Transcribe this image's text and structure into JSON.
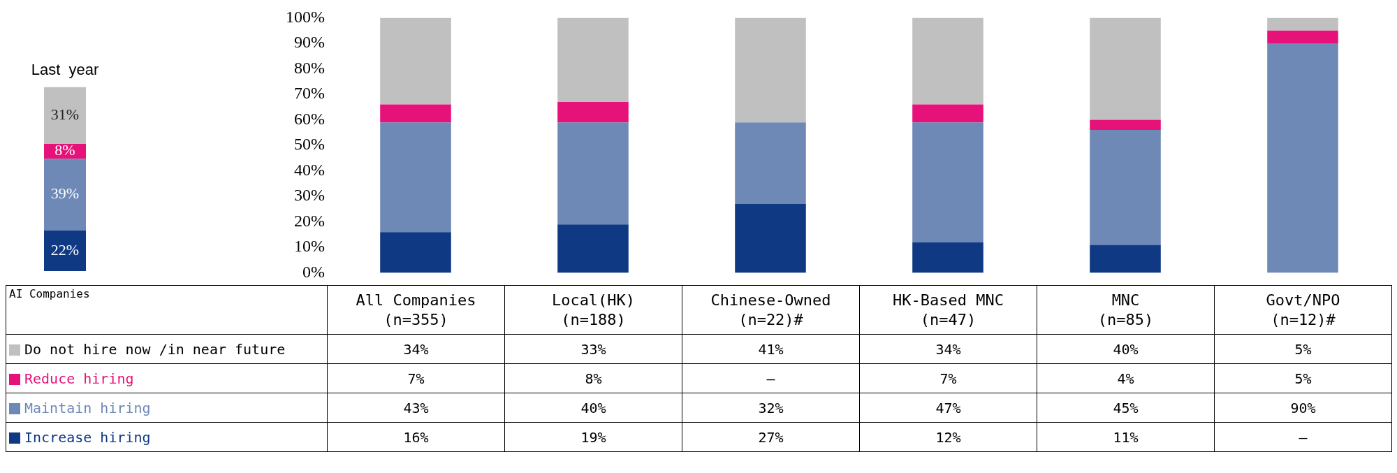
{
  "chart_data": [
    {
      "type": "bar",
      "title": "Last  year",
      "categories": [
        null
      ],
      "stacked": true,
      "series": [
        {
          "color": "#0f3a83",
          "values": [
            22
          ],
          "value_labels": [
            "22%"
          ]
        },
        {
          "color": "#6f89b7",
          "values": [
            39
          ],
          "value_labels": [
            "39%"
          ]
        },
        {
          "color": "#e6127a",
          "values": [
            8
          ],
          "value_labels": [
            "8%"
          ]
        },
        {
          "color": "#c0c0c0",
          "values": [
            31
          ],
          "value_labels": [
            "31%"
          ]
        }
      ]
    },
    {
      "type": "bar",
      "legend_title": "AI Companies",
      "categories": [
        "All Companies\n(n=355)",
        "Local(HK)\n(n=188)",
        "Chinese-Owned\n(n=22)#",
        "HK-Based MNC\n(n=47)",
        "MNC\n(n=85)",
        "Govt/NPO\n(n=12)#"
      ],
      "stacked": true,
      "grid": false,
      "legend": "bottom left",
      "ylim": [
        0,
        100
      ],
      "yticks": [
        {
          "value": 0,
          "label": "0%"
        },
        {
          "value": 10,
          "label": "10%"
        },
        {
          "value": 20,
          "label": "20%"
        },
        {
          "value": 30,
          "label": "30%"
        },
        {
          "value": 40,
          "label": "40%"
        },
        {
          "value": 50,
          "label": "50%"
        },
        {
          "value": 60,
          "label": "60%"
        },
        {
          "value": 70,
          "label": "70%"
        },
        {
          "value": 80,
          "label": "80%"
        },
        {
          "value": 90,
          "label": "90%"
        },
        {
          "value": 100,
          "label": "100%"
        }
      ],
      "series": [
        {
          "name": "Increase hiring",
          "color": "#0f3a83",
          "values": [
            16,
            19,
            27,
            12,
            11,
            null
          ],
          "value_labels": [
            "16%",
            "19%",
            "27%",
            "12%",
            "11%",
            "–"
          ]
        },
        {
          "name": "Maintain hiring",
          "color": "#6f89b7",
          "values": [
            43,
            40,
            32,
            47,
            45,
            90
          ],
          "value_labels": [
            "43%",
            "40%",
            "32%",
            "47%",
            "45%",
            "90%"
          ]
        },
        {
          "name": "Reduce hiring",
          "color": "#e6127a",
          "values": [
            7,
            8,
            null,
            7,
            4,
            5
          ],
          "value_labels": [
            "7%",
            "8%",
            "–",
            "7%",
            "4%",
            "5%"
          ]
        },
        {
          "name": "Do not hire now /in near future",
          "color": "#c0c0c0",
          "values": [
            34,
            33,
            41,
            34,
            40,
            5
          ],
          "value_labels": [
            "34%",
            "33%",
            "41%",
            "34%",
            "40%",
            "5%"
          ]
        }
      ]
    }
  ]
}
